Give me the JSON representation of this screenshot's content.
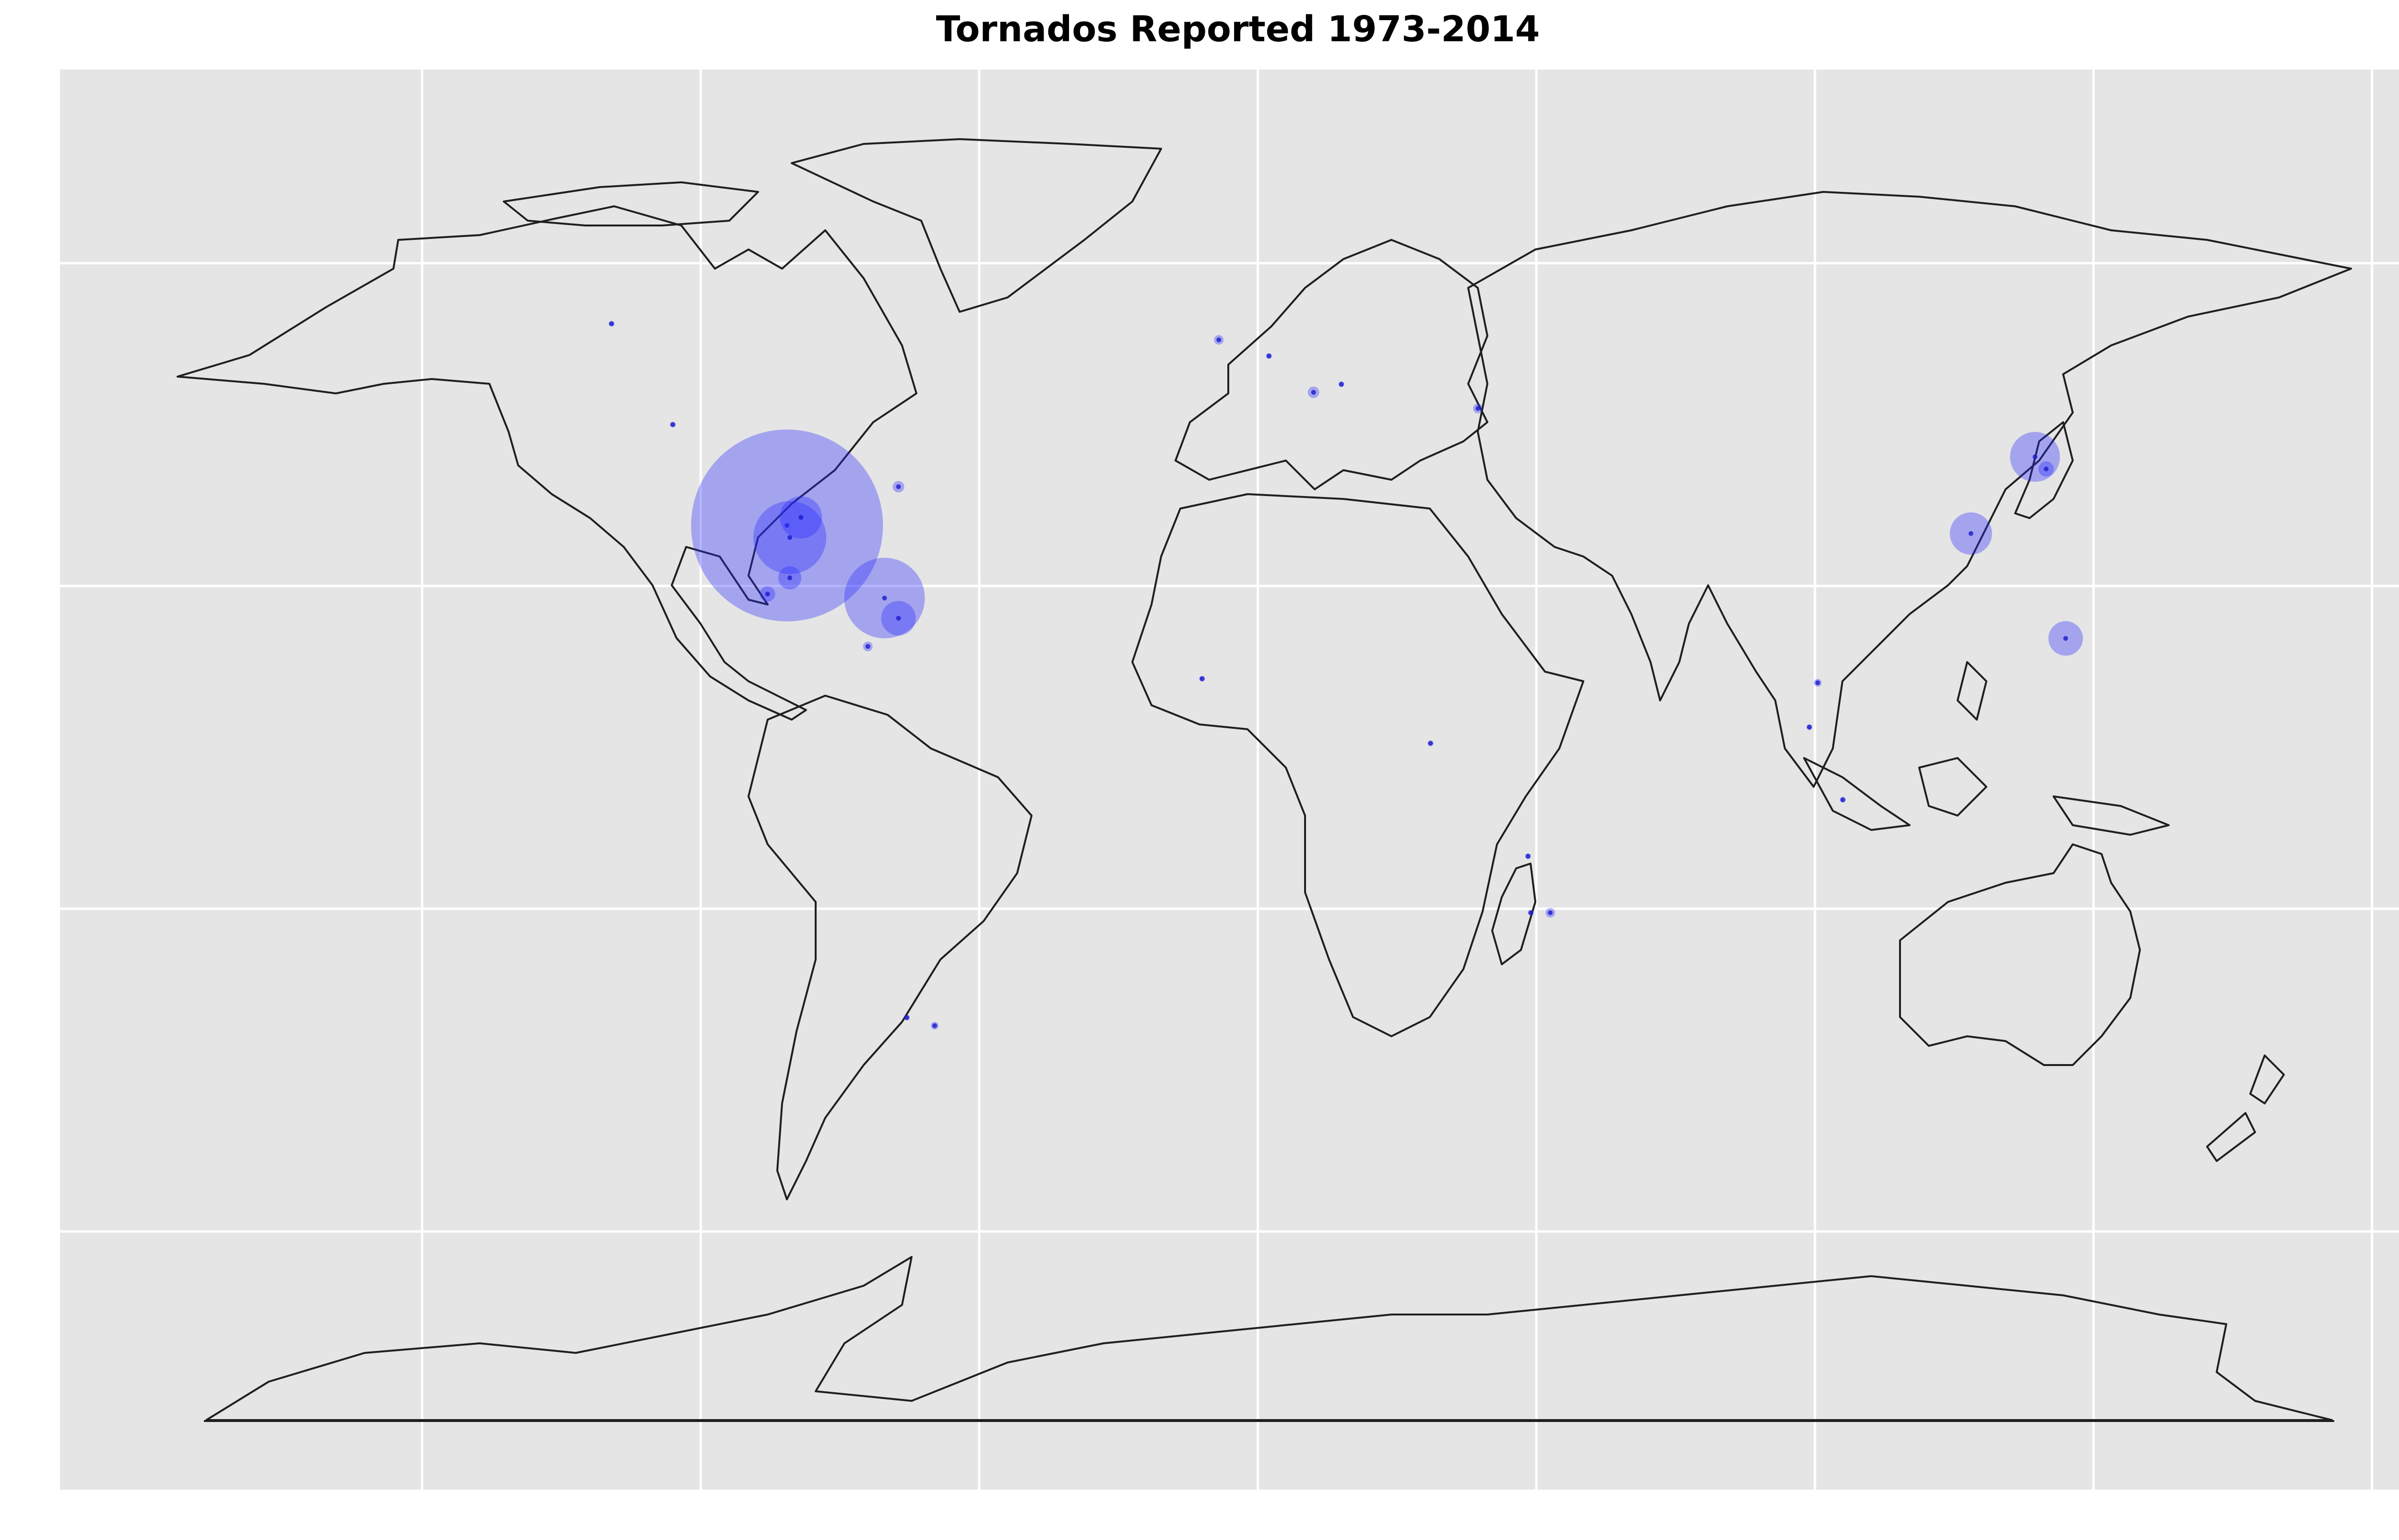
{
  "chart_data": {
    "type": "scatter",
    "title": "Tornados Reported 1973-2014",
    "xlabel": "",
    "ylabel": "",
    "projection": "world map",
    "grid": true,
    "legend": "none",
    "colors": {
      "panel": "#e5e5e5",
      "gridline": "#ffffff",
      "marker": "#2b2bff",
      "coastline": "#1f1f1f"
    },
    "series": [
      {
        "values": [
          {
            "lon": -84.5,
            "lat": 27.5,
            "size": 100
          },
          {
            "lon": -84.0,
            "lat": 26.0,
            "size": 38
          },
          {
            "lon": -82.0,
            "lat": 28.5,
            "size": 22
          },
          {
            "lon": -84.0,
            "lat": 21.0,
            "size": 12
          },
          {
            "lon": -88.0,
            "lat": 19.0,
            "size": 8
          },
          {
            "lon": -67.0,
            "lat": 18.5,
            "size": 42
          },
          {
            "lon": -64.5,
            "lat": 16.0,
            "size": 18
          },
          {
            "lon": -64.5,
            "lat": 32.3,
            "size": 6
          },
          {
            "lon": -70.0,
            "lat": 12.5,
            "size": 5
          },
          {
            "lon": 139.5,
            "lat": 36.0,
            "size": 26
          },
          {
            "lon": 141.5,
            "lat": 34.5,
            "size": 8
          },
          {
            "lon": 128.0,
            "lat": 26.5,
            "size": 22
          },
          {
            "lon": 145.0,
            "lat": 13.5,
            "size": 18
          },
          {
            "lon": 52.5,
            "lat": -20.5,
            "size": 5
          },
          {
            "lon": 49.0,
            "lat": -20.5,
            "size": 3
          },
          {
            "lon": 48.5,
            "lat": -13.5,
            "size": 3
          },
          {
            "lon": -7.0,
            "lat": 50.5,
            "size": 5
          },
          {
            "lon": 10.0,
            "lat": 44.0,
            "size": 6
          },
          {
            "lon": 39.5,
            "lat": 42.0,
            "size": 5
          },
          {
            "lon": -105.0,
            "lat": 40.0,
            "size": 3
          },
          {
            "lon": -116.0,
            "lat": 52.5,
            "size": 2
          },
          {
            "lon": -58.0,
            "lat": -34.5,
            "size": 4
          },
          {
            "lon": -63.0,
            "lat": -33.5,
            "size": 3
          },
          {
            "lon": 100.5,
            "lat": 8.0,
            "size": 4
          },
          {
            "lon": 99.0,
            "lat": 2.5,
            "size": 3
          },
          {
            "lon": -10.0,
            "lat": 8.5,
            "size": 3
          },
          {
            "lon": 31.0,
            "lat": 0.5,
            "size": 3
          },
          {
            "lon": 105.0,
            "lat": -6.5,
            "size": 3
          },
          {
            "lon": 15.0,
            "lat": 45.0,
            "size": 3
          },
          {
            "lon": 2.0,
            "lat": 48.5,
            "size": 3
          }
        ]
      }
    ]
  }
}
